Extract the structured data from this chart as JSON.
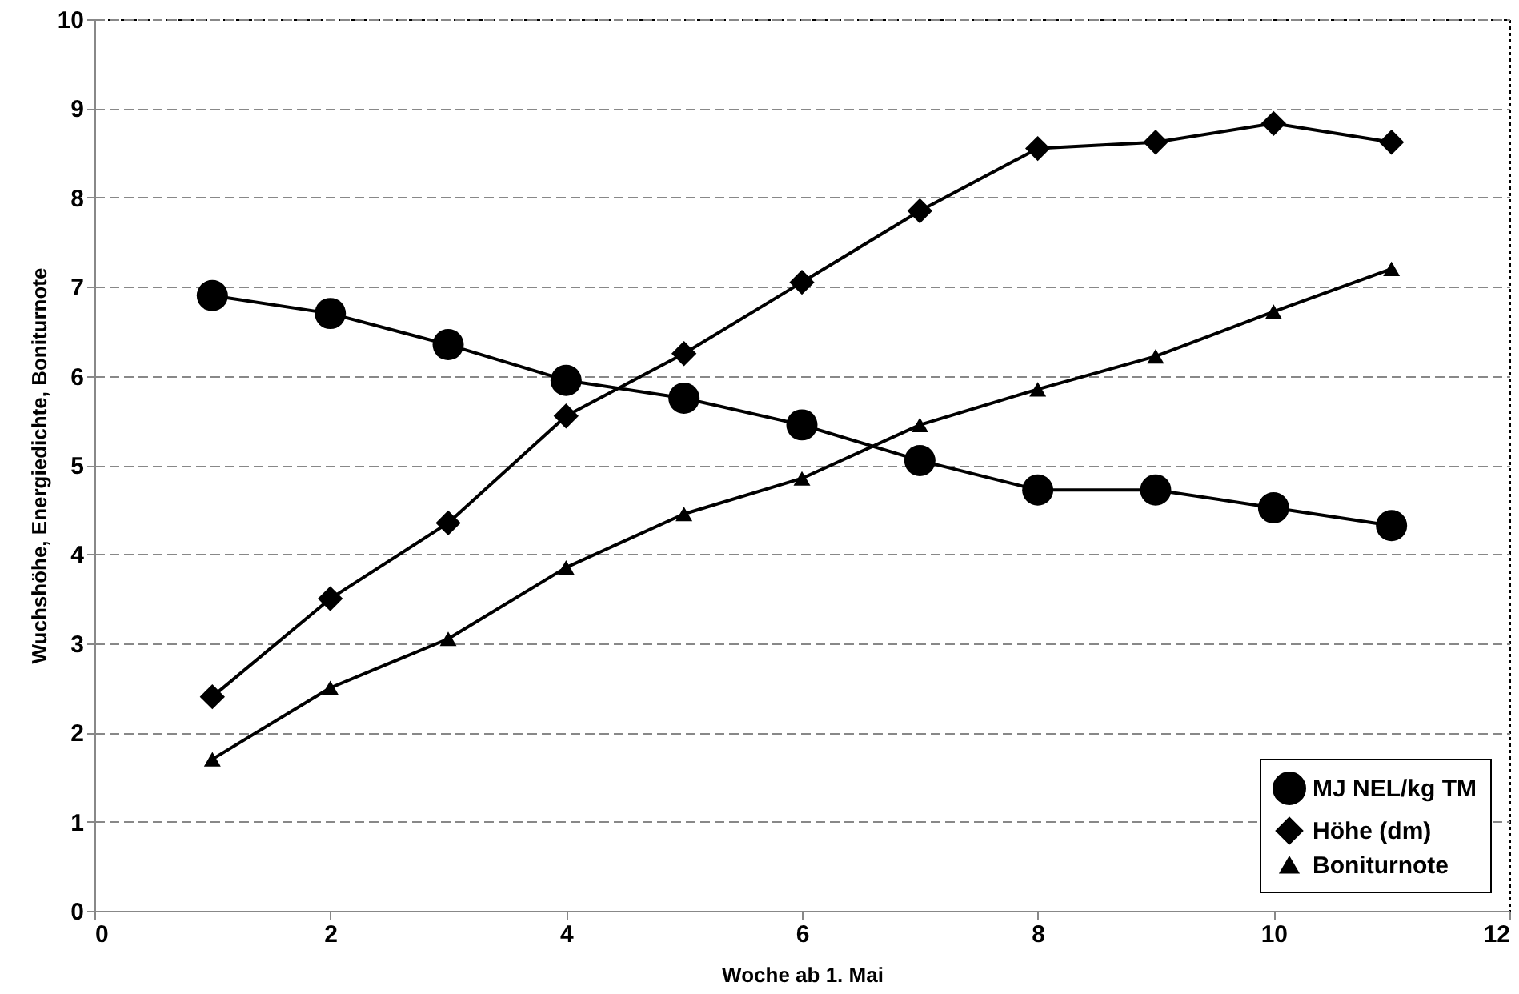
{
  "chart_data": {
    "type": "line",
    "xlabel": "Woche ab 1. Mai",
    "ylabel": "Wuchshöhe, Energiedichte, Boniturnote",
    "x": [
      1,
      2,
      3,
      4,
      5,
      6,
      7,
      8,
      9,
      10,
      11
    ],
    "series": [
      {
        "name": "MJ NEL/kg TM",
        "color": "#000000",
        "marker": "circle",
        "values": [
          6.9,
          6.7,
          6.35,
          5.95,
          5.75,
          5.45,
          5.05,
          4.72,
          4.72,
          4.52,
          4.32
        ]
      },
      {
        "name": "Höhe (dm)",
        "color": "#000000",
        "marker": "diamond",
        "values": [
          2.4,
          3.5,
          4.35,
          5.55,
          6.25,
          7.05,
          7.85,
          8.55,
          8.62,
          8.83,
          8.62
        ]
      },
      {
        "name": "Boniturnote",
        "color": "#000000",
        "marker": "triangle",
        "values": [
          1.7,
          2.5,
          3.05,
          3.85,
          4.45,
          4.85,
          5.45,
          5.85,
          6.22,
          6.72,
          7.2
        ]
      }
    ],
    "xlim": [
      0,
      12
    ],
    "xticks": [
      0,
      2,
      4,
      6,
      8,
      10,
      12
    ],
    "ylim": [
      0,
      10
    ],
    "yticks": [
      0,
      1,
      2,
      3,
      4,
      5,
      6,
      7,
      8,
      9,
      10
    ],
    "grid": "y",
    "legend": "bottom right",
    "line_style": "solid"
  }
}
